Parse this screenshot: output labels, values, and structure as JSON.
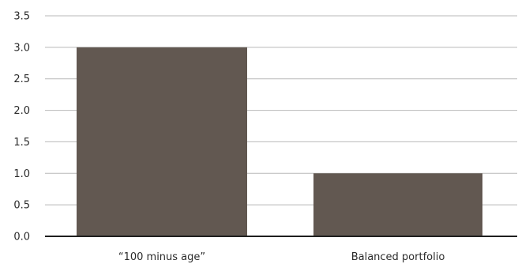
{
  "chart_data": {
    "type": "bar",
    "categories": [
      "“100 minus age”",
      "Balanced portfolio"
    ],
    "values": [
      3.0,
      1.0
    ],
    "title": "",
    "xlabel": "",
    "ylabel": "",
    "ylim": [
      0,
      3.5
    ],
    "yticks": [
      "0.0",
      "0.5",
      "1.0",
      "1.5",
      "2.0",
      "2.5",
      "3.0",
      "3.5"
    ],
    "grid": true,
    "legend": "none",
    "bar_color": "#625851"
  }
}
